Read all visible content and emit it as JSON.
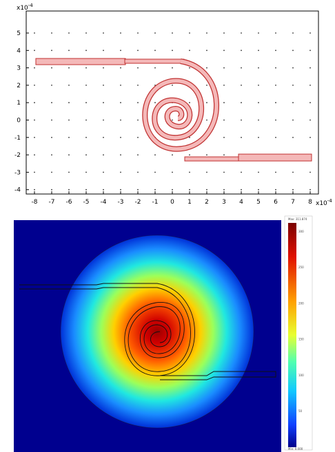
{
  "geometry_plot": {
    "y_exponent_label": "x10",
    "y_exponent_power": "-4",
    "x_exponent_label": "x10",
    "x_exponent_power": "-4",
    "y_ticks": [
      "5",
      "4",
      "3",
      "2",
      "1",
      "0",
      "-1",
      "-2",
      "-3",
      "-4"
    ],
    "x_ticks": [
      "-8",
      "-7",
      "-6",
      "-5",
      "-4",
      "-3",
      "-2",
      "-1",
      "0",
      "1",
      "2",
      "3",
      "4",
      "5",
      "6",
      "7",
      "8"
    ],
    "spiral_fill_color": "#f4b8b8",
    "spiral_stroke_color": "#c03030"
  },
  "heat_plot": {
    "colorbar_max_label": "Max: 311.874",
    "colorbar_min_label": "Min: 0.000",
    "colorbar_tick_labels": [
      "300",
      "250",
      "200",
      "150",
      "100",
      "50"
    ],
    "background_color": "#00008f"
  }
}
